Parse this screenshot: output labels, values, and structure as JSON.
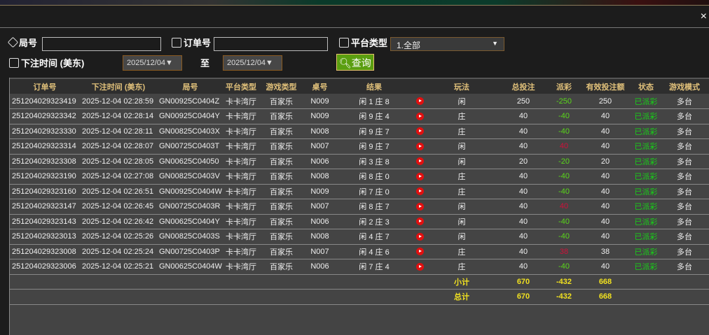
{
  "filters": {
    "round_label": "局号",
    "round_value": "",
    "order_label": "订单号",
    "order_value": "",
    "platform_label": "平台类型",
    "platform_value": "1.全部",
    "time_label": "下注时间 (美东)",
    "date_from": "2025/12/04▼",
    "to_label": "至",
    "date_to": "2025/12/04▼",
    "query_label": "查询"
  },
  "close_label": "×",
  "table": {
    "headers": [
      "订单号",
      "下注时间 (美东)",
      "局号",
      "平台类型",
      "游戏类型",
      "桌号",
      "结果",
      "",
      "玩法",
      "总投注",
      "派彩",
      "有效投注额",
      "状态",
      "游戏模式"
    ],
    "rows": [
      [
        "251204029323419",
        "2025-12-04 02:28:59",
        "GN00925C0404Z",
        "卡卡湾厅",
        "百家乐",
        "N009",
        "闲 1 庄 8",
        "闲",
        "250",
        "-250",
        "250",
        "已派彩",
        "多台"
      ],
      [
        "251204029323342",
        "2025-12-04 02:28:14",
        "GN00925C0404Y",
        "卡卡湾厅",
        "百家乐",
        "N009",
        "闲 9 庄 4",
        "庄",
        "40",
        "-40",
        "40",
        "已派彩",
        "多台"
      ],
      [
        "251204029323330",
        "2025-12-04 02:28:11",
        "GN00825C0403X",
        "卡卡湾厅",
        "百家乐",
        "N008",
        "闲 9 庄 7",
        "庄",
        "40",
        "-40",
        "40",
        "已派彩",
        "多台"
      ],
      [
        "251204029323314",
        "2025-12-04 02:28:07",
        "GN00725C0403T",
        "卡卡湾厅",
        "百家乐",
        "N007",
        "闲 9 庄 7",
        "闲",
        "40",
        "40",
        "40",
        "已派彩",
        "多台"
      ],
      [
        "251204029323308",
        "2025-12-04 02:28:05",
        "GN00625C04050",
        "卡卡湾厅",
        "百家乐",
        "N006",
        "闲 3 庄 8",
        "闲",
        "20",
        "-20",
        "20",
        "已派彩",
        "多台"
      ],
      [
        "251204029323190",
        "2025-12-04 02:27:08",
        "GN00825C0403V",
        "卡卡湾厅",
        "百家乐",
        "N008",
        "闲 8 庄 0",
        "庄",
        "40",
        "-40",
        "40",
        "已派彩",
        "多台"
      ],
      [
        "251204029323160",
        "2025-12-04 02:26:51",
        "GN00925C0404W",
        "卡卡湾厅",
        "百家乐",
        "N009",
        "闲 7 庄 0",
        "庄",
        "40",
        "-40",
        "40",
        "已派彩",
        "多台"
      ],
      [
        "251204029323147",
        "2025-12-04 02:26:45",
        "GN00725C0403R",
        "卡卡湾厅",
        "百家乐",
        "N007",
        "闲 8 庄 7",
        "闲",
        "40",
        "40",
        "40",
        "已派彩",
        "多台"
      ],
      [
        "251204029323143",
        "2025-12-04 02:26:42",
        "GN00625C0404Y",
        "卡卡湾厅",
        "百家乐",
        "N006",
        "闲 2 庄 3",
        "闲",
        "40",
        "-40",
        "40",
        "已派彩",
        "多台"
      ],
      [
        "251204029323013",
        "2025-12-04 02:25:26",
        "GN00825C0403S",
        "卡卡湾厅",
        "百家乐",
        "N008",
        "闲 4 庄 7",
        "闲",
        "40",
        "-40",
        "40",
        "已派彩",
        "多台"
      ],
      [
        "251204029323008",
        "2025-12-04 02:25:24",
        "GN00725C0403P",
        "卡卡湾厅",
        "百家乐",
        "N007",
        "闲 4 庄 6",
        "庄",
        "40",
        "38",
        "38",
        "已派彩",
        "多台"
      ],
      [
        "251204029323006",
        "2025-12-04 02:25:21",
        "GN00625C0404W",
        "卡卡湾厅",
        "百家乐",
        "N006",
        "闲 7 庄 4",
        "庄",
        "40",
        "-40",
        "40",
        "已派彩",
        "多台"
      ]
    ],
    "subtotal": {
      "label": "小计",
      "total_bet": "670",
      "payout": "-432",
      "valid_bet": "668"
    },
    "total": {
      "label": "总计",
      "total_bet": "670",
      "payout": "-432",
      "valid_bet": "668"
    }
  },
  "colors": {
    "header_text": "#e0c07a",
    "loss": "#5ad81a",
    "win": "#d0103a",
    "status": "#18d018",
    "summary": "#f0e020",
    "query_button": "#5a9e10"
  }
}
